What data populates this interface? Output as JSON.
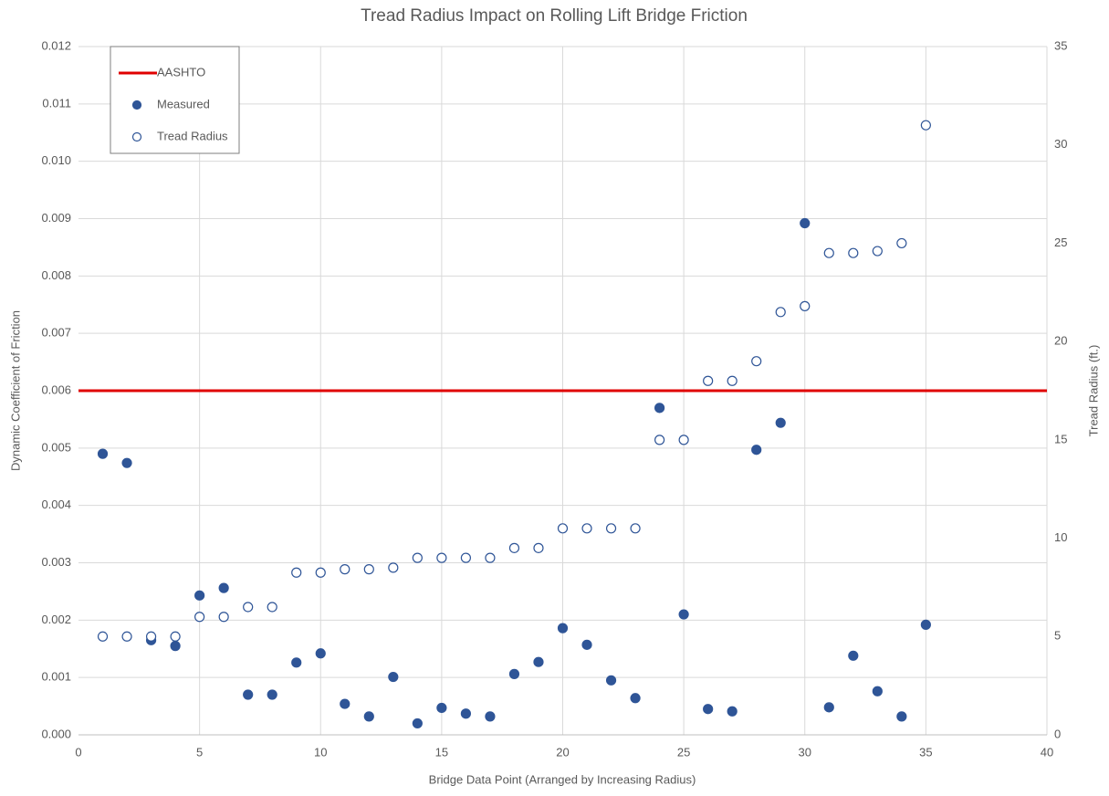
{
  "chart_data": {
    "type": "scatter",
    "title": "Tread Radius Impact on Rolling Lift Bridge Friction",
    "x_label": "Bridge Data Point (Arranged by Increasing Radius)",
    "y_label": "Dynamic Coefficient of Friction",
    "y2_label": "Tread Radius (ft.)",
    "xlim": [
      0,
      40
    ],
    "xticks": [
      0,
      5,
      10,
      15,
      20,
      25,
      30,
      35,
      40
    ],
    "ylim": [
      0,
      0.012
    ],
    "yticks": [
      {
        "value": 0,
        "label": "0.000"
      },
      {
        "value": 0.001,
        "label": "0.001"
      },
      {
        "value": 0.002,
        "label": "0.002"
      },
      {
        "value": 0.003,
        "label": "0.003"
      },
      {
        "value": 0.004,
        "label": "0.004"
      },
      {
        "value": 0.005,
        "label": "0.005"
      },
      {
        "value": 0.006,
        "label": "0.006"
      },
      {
        "value": 0.007,
        "label": "0.007"
      },
      {
        "value": 0.008,
        "label": "0.008"
      },
      {
        "value": 0.009,
        "label": "0.009"
      },
      {
        "value": 0.01,
        "label": "0.010"
      },
      {
        "value": 0.011,
        "label": "0.011"
      },
      {
        "value": 0.012,
        "label": "0.012"
      }
    ],
    "y2lim": [
      0,
      35
    ],
    "y2ticks": [
      0,
      5,
      10,
      15,
      20,
      25,
      30,
      35
    ],
    "grid": true,
    "legend": "upper left",
    "series": [
      {
        "name": "AASHTO",
        "color": "#e00000",
        "mark": "line",
        "x": [
          0,
          40
        ],
        "values": [
          0.006,
          0.006
        ]
      },
      {
        "name": "Measured",
        "color": "#2f5597",
        "mark": "filled",
        "x": [
          1,
          2,
          3,
          4,
          5,
          6,
          7,
          8,
          9,
          10,
          11,
          12,
          13,
          14,
          15,
          16,
          17,
          18,
          19,
          20,
          21,
          22,
          23,
          24,
          25,
          26,
          27,
          28,
          29,
          30,
          31,
          32,
          33,
          34,
          35
        ],
        "values": [
          0.0049,
          0.00474,
          0.00165,
          0.00155,
          0.00243,
          0.00256,
          0.0007,
          0.0007,
          0.00126,
          0.00142,
          0.00054,
          0.00032,
          0.00101,
          0.0002,
          0.00047,
          0.00037,
          0.00032,
          0.00106,
          0.00127,
          0.00186,
          0.00157,
          0.00095,
          0.00064,
          0.0057,
          0.0021,
          0.00045,
          0.00041,
          0.00497,
          0.00544,
          0.00892,
          0.00048,
          0.00138,
          0.00076,
          0.00032,
          0.00192
        ]
      },
      {
        "name": "Tread Radius",
        "color": "#2f5597",
        "mark": "open",
        "axis": "y2",
        "x": [
          1,
          2,
          3,
          4,
          5,
          6,
          7,
          8,
          9,
          10,
          11,
          12,
          13,
          14,
          15,
          16,
          17,
          18,
          19,
          20,
          21,
          22,
          23,
          24,
          25,
          26,
          27,
          28,
          29,
          30,
          31,
          32,
          33,
          34,
          35
        ],
        "values": [
          5,
          5,
          5,
          5,
          6,
          6,
          6.5,
          6.5,
          8.25,
          8.25,
          8.42,
          8.42,
          8.5,
          9,
          9,
          9,
          9,
          9.5,
          9.5,
          10.5,
          10.5,
          10.5,
          10.5,
          15,
          15,
          18,
          18,
          19,
          21.5,
          21.8,
          24.5,
          24.5,
          24.6,
          25,
          31
        ]
      }
    ]
  }
}
